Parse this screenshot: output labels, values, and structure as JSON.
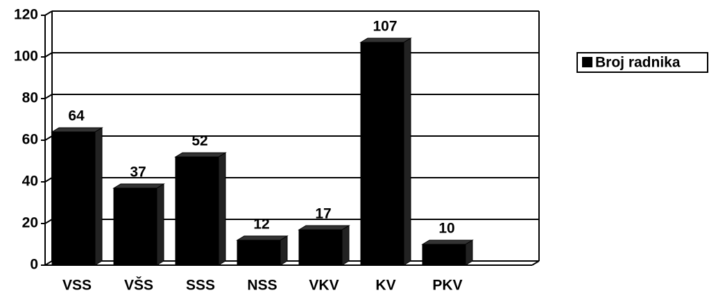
{
  "chart_data": {
    "type": "bar",
    "categories": [
      "VSS",
      "VŠS",
      "SSS",
      "NSS",
      "VKV",
      "KV",
      "PKV",
      null
    ],
    "series": [
      {
        "name": "Broj radnika",
        "color": "#000000",
        "values": [
          64,
          37,
          52,
          12,
          17,
          107,
          10,
          null
        ]
      }
    ],
    "ylim": [
      0,
      120
    ],
    "yticks": [
      0,
      20,
      40,
      60,
      80,
      100,
      120
    ],
    "grid": true,
    "legend": "right"
  }
}
